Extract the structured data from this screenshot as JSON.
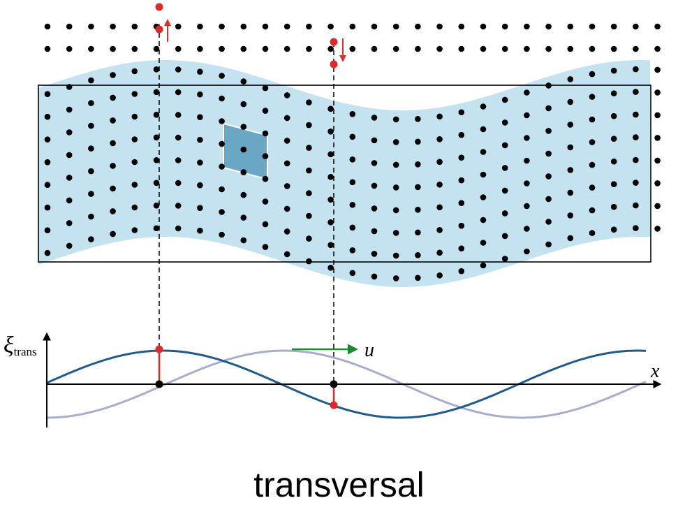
{
  "caption": "transversal",
  "axes": {
    "y_label_symbol": "ξ",
    "y_label_subscript": "trans",
    "x_label": "x",
    "velocity_label": "u"
  },
  "colors": {
    "medium_fill": "#c4e2ef",
    "cell_fill": "#6aa7c4",
    "particle": "#000000",
    "marker": "#e0282a",
    "arrow": "#d9302c",
    "wave_current": "#1f5a8c",
    "wave_previous": "#a7adcc",
    "velocity_arrow": "#1a8a2a"
  },
  "wave": {
    "phase_previous_fraction_of_wavelength": 0.25,
    "markers": [
      {
        "name": "crest",
        "displacement": "positive",
        "motion": "up"
      },
      {
        "name": "descending",
        "displacement": "negative",
        "motion": "down"
      }
    ]
  }
}
